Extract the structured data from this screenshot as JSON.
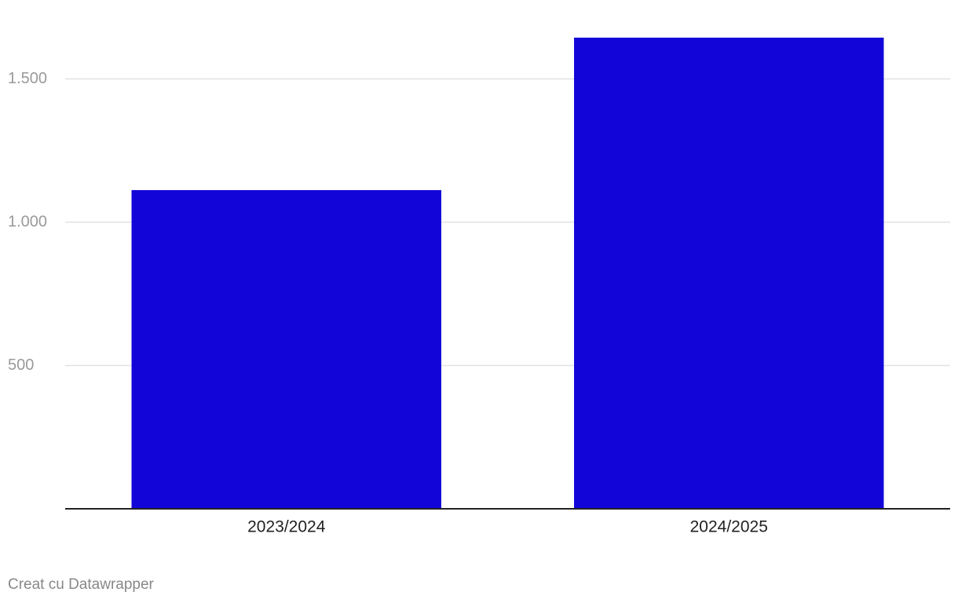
{
  "chart_data": {
    "type": "bar",
    "categories": [
      "2023/2024",
      "2024/2025"
    ],
    "values": [
      1112,
      1644
    ],
    "color": "#1205d8",
    "ylim": [
      0,
      1650
    ],
    "yticks": [
      500,
      {
        "value": 1000,
        "label": "1.000"
      },
      {
        "value": 1500,
        "label": "1.500"
      }
    ],
    "grid": true,
    "credit": "Creat cu Datawrapper"
  }
}
